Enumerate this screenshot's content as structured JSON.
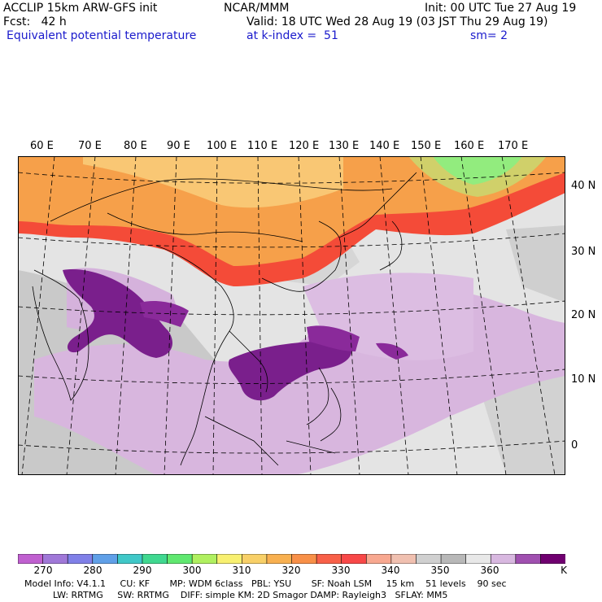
{
  "header": {
    "title": "ACCLIP 15km ARW-GFS init",
    "org": "NCAR/MMM",
    "init": "Init: 00 UTC Tue 27 Aug 19",
    "fcst": "Fcst:   42 h",
    "valid": "Valid: 18 UTC Wed 28 Aug 19 (03 JST Thu 29 Aug 19)",
    "field": "Equivalent potential temperature",
    "level": "at k-index =  51",
    "smooth": "sm= 2"
  },
  "map": {
    "lon_labels": [
      "60 E",
      "70 E",
      "80 E",
      "90 E",
      "100 E",
      "110 E",
      "120 E",
      "130 E",
      "140 E",
      "150 E",
      "160 E",
      "170 E"
    ],
    "lat_labels": [
      "40 N",
      "30 N",
      "20 N",
      "10 N",
      "0"
    ],
    "colors": {
      "violet_dark": "#7a1f8c",
      "violet_light": "#d8b4de",
      "grey": "#c8c8c8",
      "red": "#f44b38",
      "orange": "#f6a04a",
      "green": "#5be57b"
    }
  },
  "colorbar": {
    "labels": [
      "270",
      "280",
      "290",
      "300",
      "310",
      "320",
      "330",
      "340",
      "350",
      "360",
      "K"
    ],
    "colors": [
      "#c060d0",
      "#a078d8",
      "#8080e8",
      "#60a0e8",
      "#40c8c8",
      "#40d890",
      "#60e870",
      "#b0f060",
      "#f8f070",
      "#f8d068",
      "#f8b050",
      "#f89048",
      "#f86048",
      "#f84848",
      "#f8a890",
      "#f0c0b0",
      "#d0d0d0",
      "#b8b8b8",
      "#e8e8e8",
      "#d8b8e0",
      "#a050b0",
      "#700070"
    ]
  },
  "footer": {
    "line1": "Model Info: V4.1.1     CU: KF       MP: WDM 6class   PBL: YSU       SF: Noah LSM     15 km    51 levels    90 sec",
    "line2": "          LW: RRTMG     SW: RRTMG    DIFF: simple KM: 2D Smagor DAMP: Rayleigh3   SFLAY: MM5"
  }
}
